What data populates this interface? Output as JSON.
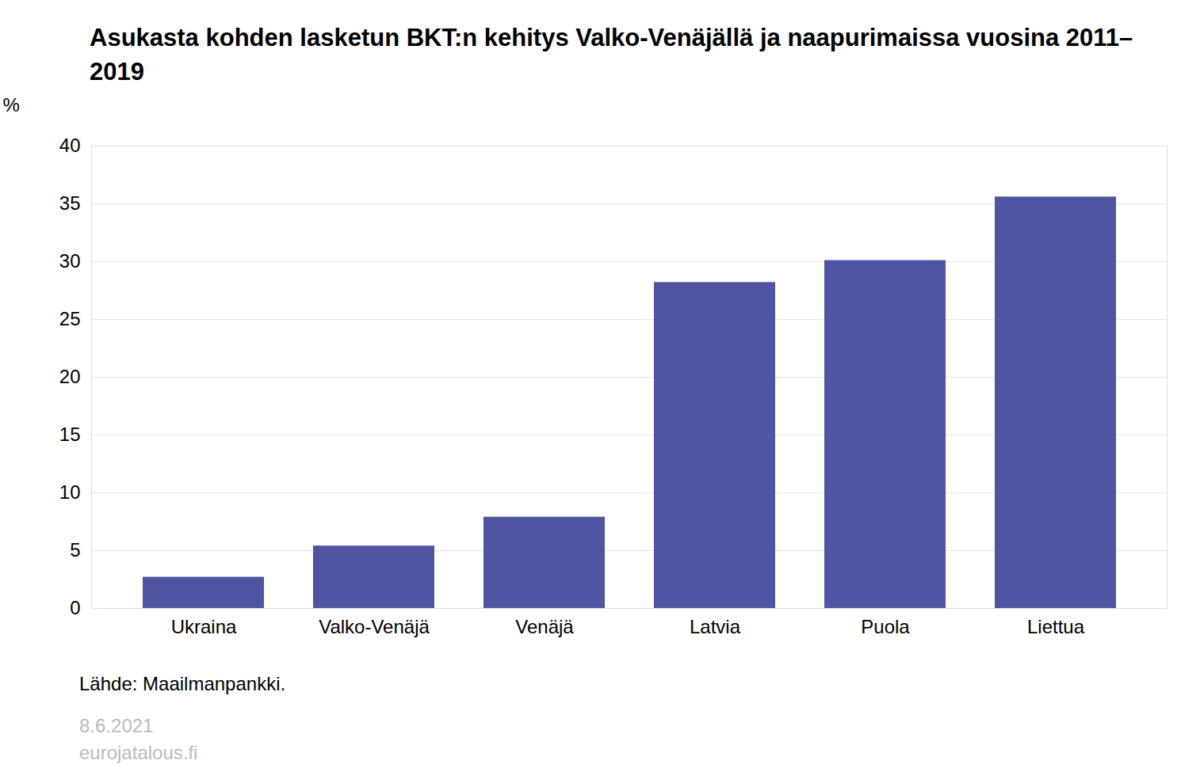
{
  "chart_data": {
    "type": "bar",
    "title": "Asukasta kohden lasketun BKT:n kehitys Valko-Venäjällä ja naapurimaissa vuosina 2011–2019",
    "y_label": "%",
    "categories": [
      "Ukraina",
      "Valko-Venäjä",
      "Venäjä",
      "Latvia",
      "Puola",
      "Liettua"
    ],
    "values": [
      2.7,
      5.4,
      7.9,
      28.2,
      30.1,
      35.6
    ],
    "color": "#4f55a3",
    "ylim": [
      0,
      40
    ],
    "yticks": [
      0,
      5,
      10,
      15,
      20,
      25,
      30,
      35,
      40
    ],
    "grid": true,
    "source": "Lähde: Maailmanpankki.",
    "footer": [
      "8.6.2021",
      "eurojatalous.fi"
    ]
  }
}
